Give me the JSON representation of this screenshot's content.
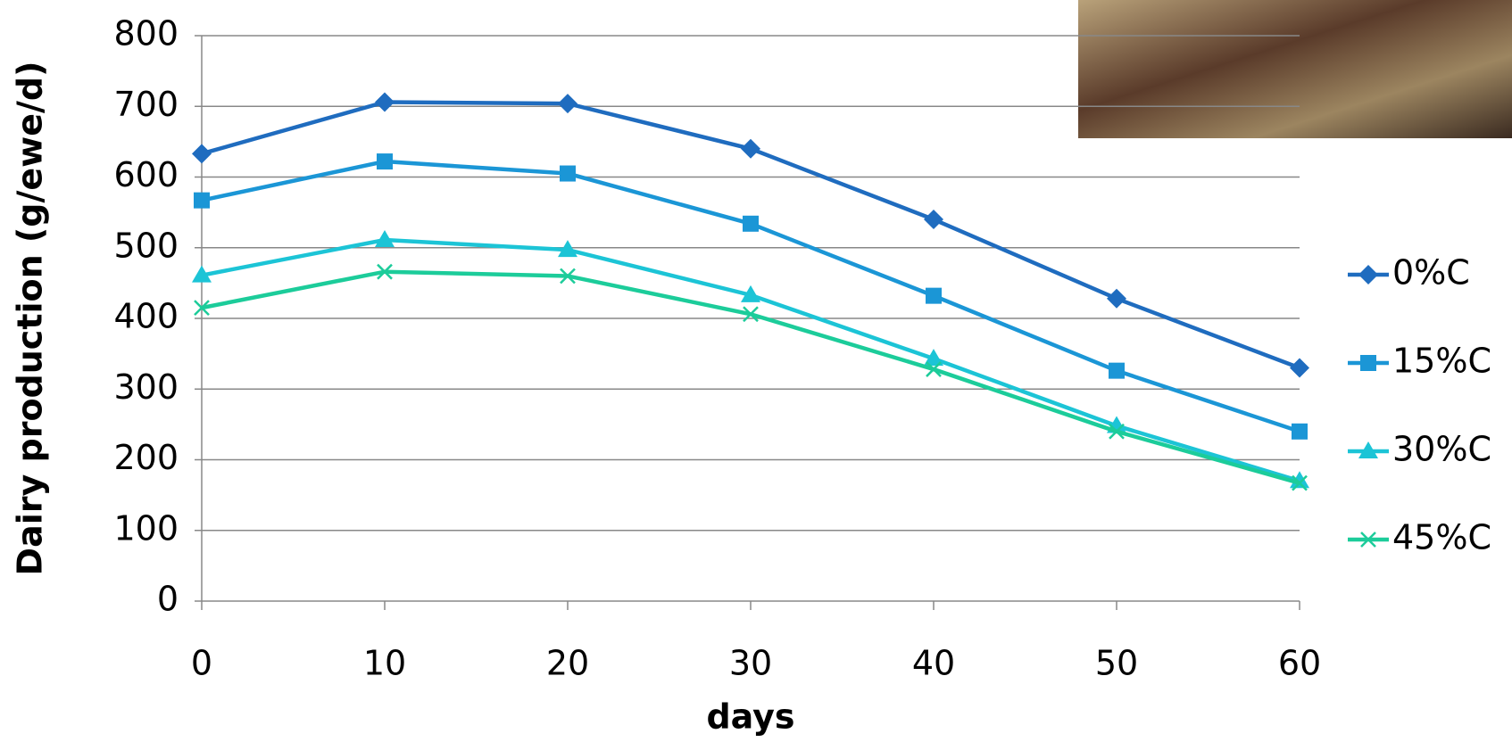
{
  "chart_data": {
    "type": "line",
    "y_label": "Dairy production (g/ewe/d)",
    "x_label": "days",
    "x": [
      0,
      10,
      20,
      30,
      40,
      50,
      60
    ],
    "series": [
      {
        "name": "0%C",
        "color": "#1f6cbf",
        "marker": "diamond",
        "values": [
          633,
          706,
          704,
          640,
          540,
          428,
          330
        ]
      },
      {
        "name": "15%C",
        "color": "#1b96d6",
        "marker": "square",
        "values": [
          567,
          622,
          605,
          534,
          432,
          326,
          240
        ]
      },
      {
        "name": "30%C",
        "color": "#1cc4d6",
        "marker": "triangle",
        "values": [
          461,
          511,
          497,
          433,
          343,
          248,
          170
        ]
      },
      {
        "name": "45%C",
        "color": "#1ccc9a",
        "marker": "x",
        "values": [
          415,
          466,
          460,
          406,
          328,
          240,
          167
        ]
      }
    ],
    "xlim": [
      0,
      60
    ],
    "xticks": [
      0,
      10,
      20,
      30,
      40,
      50,
      60
    ],
    "ylim": [
      0,
      800
    ],
    "yticks": [
      0,
      100,
      200,
      300,
      400,
      500,
      600,
      700,
      800
    ],
    "grid": true,
    "legend": "right"
  }
}
